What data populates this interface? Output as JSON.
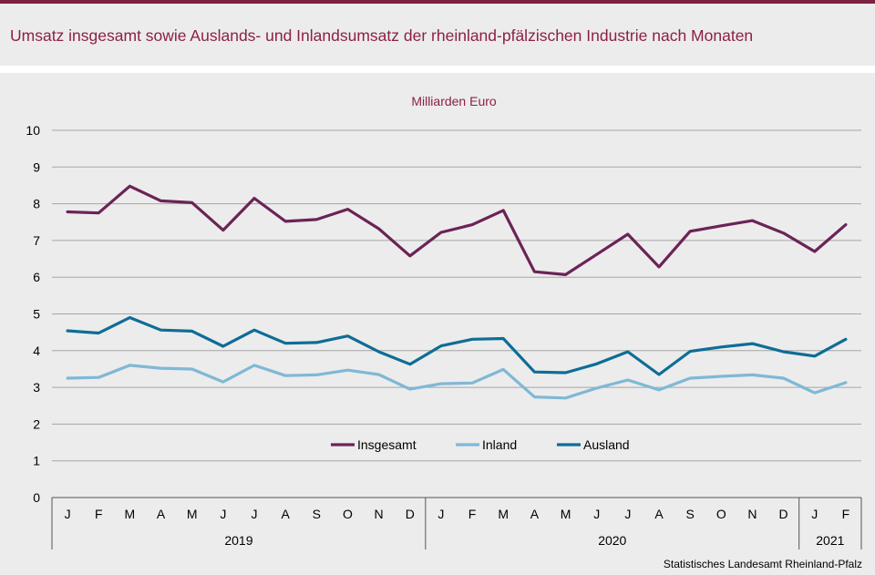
{
  "title": "Umsatz insgesamt sowie Auslands- und Inlandsumsatz der rheinland-pfälzischen Industrie nach Monaten",
  "source": "Statistisches Landesamt  Rheinland-Pfalz",
  "colors": {
    "title": "#8c2143",
    "accent_rule": "#7b2141",
    "insgesamt": "#6b2356",
    "inland": "#7fb8d6",
    "ausland": "#0e6d96"
  },
  "chart_data": {
    "type": "line",
    "unit_label": "Milliarden Euro",
    "ylim": [
      0,
      10
    ],
    "yticks": [
      "0",
      "1",
      "2",
      "3",
      "4",
      "5",
      "6",
      "7",
      "8",
      "9",
      "10"
    ],
    "grid": true,
    "legend_position": "lower-center",
    "categories": [
      "J",
      "F",
      "M",
      "A",
      "M",
      "J",
      "J",
      "A",
      "S",
      "O",
      "N",
      "D",
      "J",
      "F",
      "M",
      "A",
      "M",
      "J",
      "J",
      "A",
      "S",
      "O",
      "N",
      "D",
      "J",
      "F"
    ],
    "years": [
      {
        "label": "2019",
        "months": 12
      },
      {
        "label": "2020",
        "months": 12
      },
      {
        "label": "2021",
        "months": 2
      }
    ],
    "series": [
      {
        "name": "Insgesamt",
        "values": [
          7.78,
          7.75,
          8.48,
          8.08,
          8.03,
          7.28,
          8.15,
          7.52,
          7.57,
          7.85,
          7.32,
          6.58,
          7.22,
          7.43,
          7.82,
          6.15,
          6.07,
          6.62,
          7.17,
          6.28,
          7.25,
          7.4,
          7.54,
          7.2,
          6.7,
          7.43
        ]
      },
      {
        "name": "Inland",
        "values": [
          3.25,
          3.27,
          3.6,
          3.52,
          3.5,
          3.15,
          3.6,
          3.32,
          3.34,
          3.47,
          3.35,
          2.95,
          3.1,
          3.12,
          3.49,
          2.74,
          2.71,
          2.98,
          3.2,
          2.93,
          3.25,
          3.3,
          3.34,
          3.25,
          2.85,
          3.13
        ]
      },
      {
        "name": "Ausland",
        "values": [
          4.54,
          4.48,
          4.9,
          4.56,
          4.53,
          4.12,
          4.56,
          4.2,
          4.22,
          4.4,
          3.97,
          3.63,
          4.13,
          4.31,
          4.33,
          3.42,
          3.4,
          3.64,
          3.97,
          3.35,
          3.98,
          4.1,
          4.19,
          3.97,
          3.85,
          4.31
        ]
      }
    ]
  }
}
